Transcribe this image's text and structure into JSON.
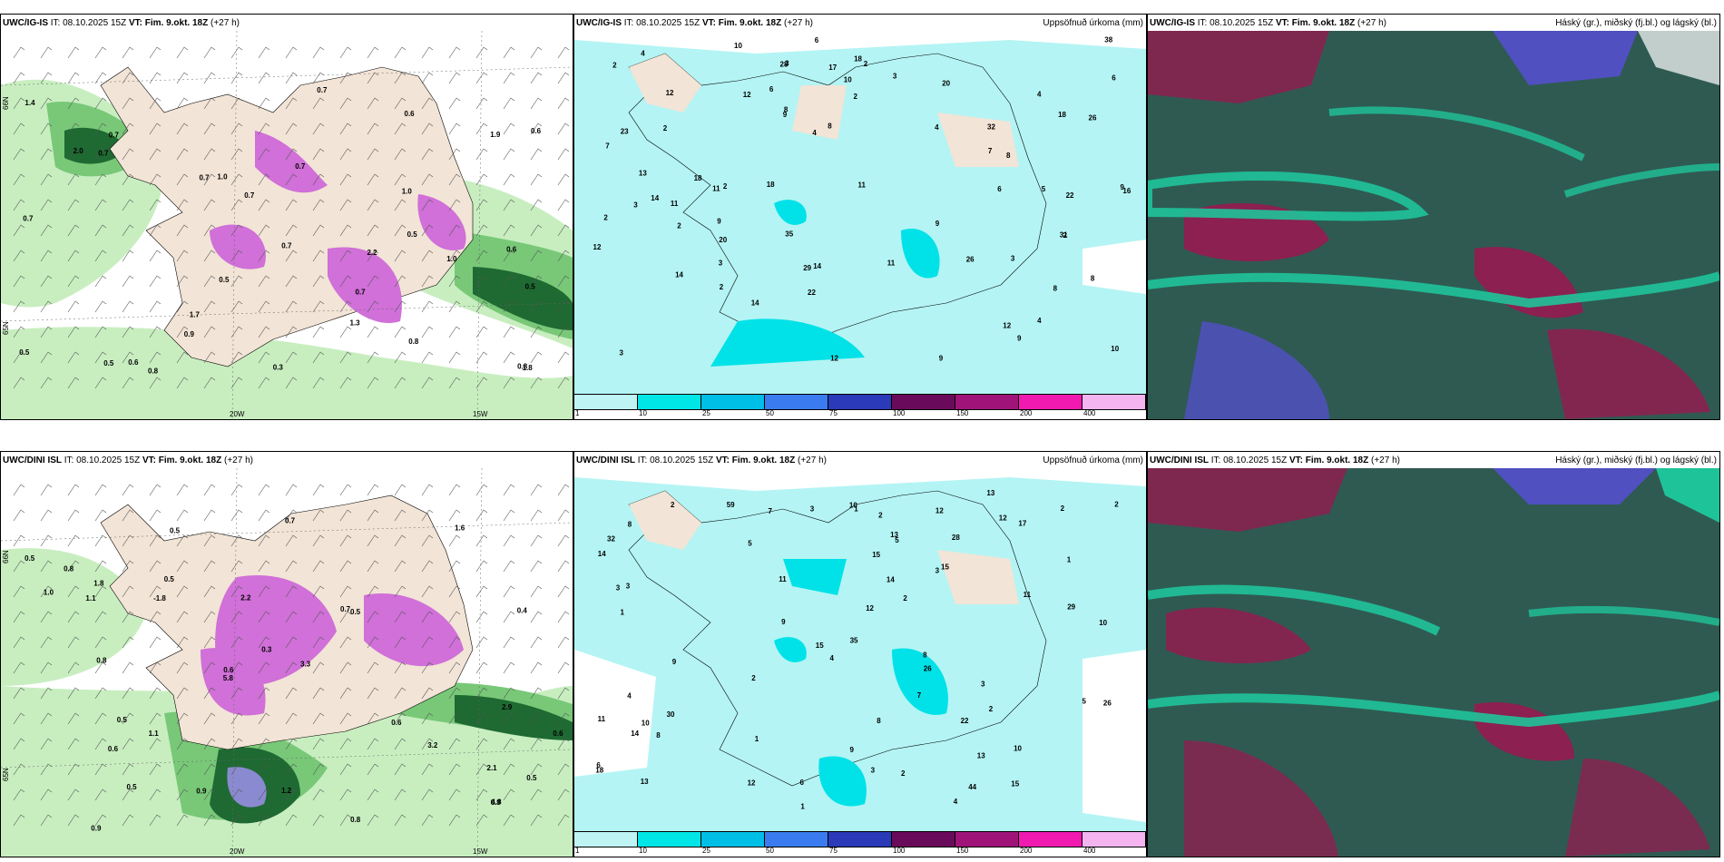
{
  "rows": [
    {
      "model": "UWC/IG-IS",
      "it": "IT: 08.10.2025 15Z",
      "vt": "VT: Fim. 9.okt. 18Z",
      "lead": "(+27 h)",
      "precip_labels": [
        "3",
        "2",
        "2",
        "2",
        "4",
        "3",
        "3",
        "3",
        "2",
        "2",
        "3",
        "6",
        "12",
        "18",
        "11",
        "12",
        "9",
        "9",
        "6",
        "8",
        "28",
        "26",
        "22",
        "20",
        "22",
        "20",
        "11",
        "4",
        "14",
        "9",
        "18",
        "11",
        "5",
        "8",
        "2",
        "2",
        "12",
        "10",
        "8",
        "9",
        "7",
        "8",
        "29",
        "32",
        "38",
        "35",
        "17",
        "16",
        "31",
        "10",
        "9",
        "10",
        "14",
        "26",
        "18",
        "4",
        "2",
        "2",
        "4",
        "11",
        "23",
        "18",
        "9",
        "14",
        "12",
        "12",
        "13",
        "14",
        "6",
        "6",
        "7",
        "8",
        "4",
        "3"
      ],
      "precip_right_title": "Uppsöfnuð úrkoma (mm)",
      "cloud_right_title": "Háský (gr.), miðský (fj.bl.) og lágský (bl.)",
      "wind_labels": [
        "0.6",
        "0.5",
        "0.8",
        "0.7",
        "0.3",
        "1.0",
        "0.7",
        "0.5",
        "0.8",
        "0.7",
        "0.9",
        "1.3",
        "0.7",
        "0.6",
        "0.5",
        "0.7",
        "0.7",
        "1.0",
        "0.7",
        "0.5",
        "0.6",
        "0.7",
        "1.9",
        "2.2",
        "1.7",
        "1.4",
        "0.5",
        "1.0",
        "1.8",
        "2.0",
        "0.8",
        "0.6",
        "0.7"
      ],
      "axis": {
        "lat66": "66N",
        "lat65": "65N",
        "lon20": "20W",
        "lon15": "15W"
      }
    },
    {
      "model": "UWC/DINI ISL",
      "it": "IT: 08.10.2025 15Z",
      "vt": "VT: Fim. 9.okt. 18Z",
      "lead": "(+27 h)",
      "precip_labels": [
        "2",
        "2",
        "1",
        "1",
        "1",
        "2",
        "2",
        "3",
        "2",
        "2",
        "2",
        "1",
        "13",
        "29",
        "15",
        "15",
        "26",
        "12",
        "5",
        "4",
        "6",
        "3",
        "6",
        "7",
        "14",
        "10",
        "12",
        "15",
        "8",
        "4",
        "5",
        "11",
        "11",
        "3",
        "9",
        "22",
        "28",
        "35",
        "17",
        "44",
        "30",
        "18",
        "10",
        "10",
        "15",
        "13",
        "12",
        "4",
        "3",
        "1",
        "2",
        "12",
        "11",
        "8",
        "13",
        "26",
        "59",
        "32",
        "13",
        "14",
        "14",
        "9",
        "7",
        "8",
        "8",
        "9",
        "5",
        "3",
        "10",
        "3"
      ],
      "precip_right_title": "Uppsöfnuð úrkoma (mm)",
      "cloud_right_title": "Háský (gr.), miðský (fj.bl.) og lágský (bl.)",
      "wind_labels": [
        "-1.8",
        "1.1",
        "0.6",
        "0.5",
        "0.8",
        "0.6",
        "0.5",
        "1.2",
        "0.9",
        "0.8",
        "0.7",
        "0.6",
        "0.5",
        "1.6",
        "2.2",
        "0.4",
        "0.3",
        "0.5",
        "2.9",
        "2.1",
        "4.8",
        "3.3",
        "5.8",
        "3.2",
        "1.8",
        "0.9",
        "0.5",
        "0.8",
        "1.0",
        "0.7",
        "0.6",
        "0.9",
        "0.5",
        "0.5",
        "1.1"
      ],
      "axis": {
        "lat66": "66N",
        "lat65": "65N",
        "lon20": "20W",
        "lon15": "15W"
      }
    }
  ],
  "legend": {
    "ticks": [
      "1",
      "10",
      "25",
      "50",
      "75",
      "100",
      "150",
      "200",
      "400"
    ],
    "colors": [
      "#bff4f4",
      "#00e6e6",
      "#00bfe6",
      "#3a7cf0",
      "#2a3ab8",
      "#6a0a5a",
      "#a0147a",
      "#f01ab0",
      "#f4b4f0"
    ]
  },
  "colors": {
    "land": "#f2e4d6",
    "sea_bg": "#ffffff",
    "precip_light": "#b4f4f4",
    "precip_mid": "#00e2e8",
    "wind_light": "#c8eec0",
    "wind_mid": "#78c878",
    "wind_dark": "#1e6a32",
    "wind_purple": "#d070d8",
    "cloud_dark": "#2f5a52",
    "cloud_green": "#1fc39a",
    "cloud_maroon": "#8c2050",
    "cloud_blue": "#5050c0"
  }
}
